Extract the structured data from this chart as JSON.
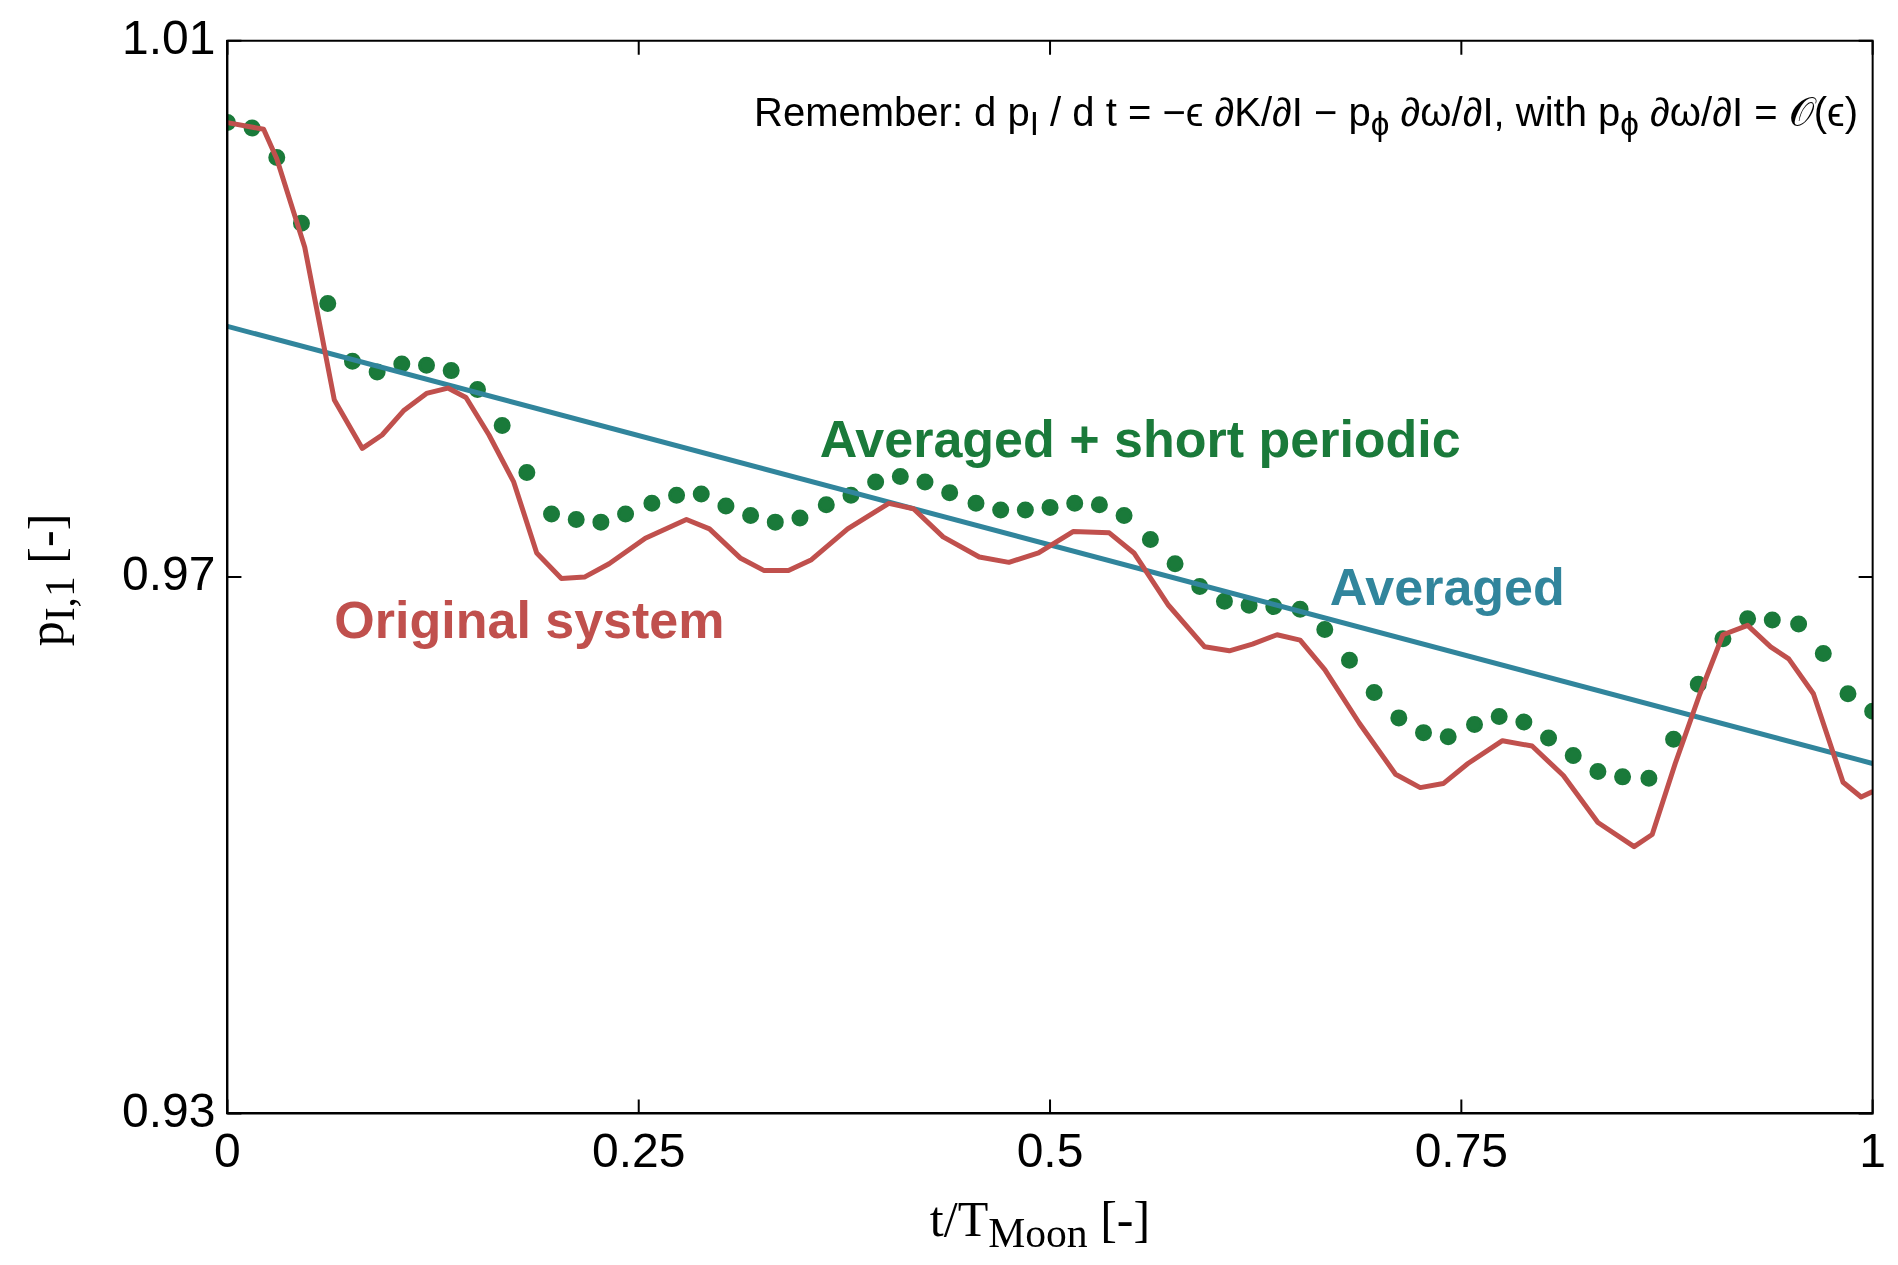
{
  "chart_data": {
    "type": "line",
    "xlabel": "t/T$_{Moon}$ [-]",
    "ylabel": "p$_{I,1}$ [-]",
    "xlim": [
      0,
      1
    ],
    "xticks": [
      0,
      0.25,
      0.5,
      0.75,
      1
    ],
    "ylim": [
      0.93,
      1.01
    ],
    "yticks": [
      0.93,
      0.97,
      1.01
    ],
    "annotations": [
      "Remember: d p$_{I}$ / d t = −ϵ ∂K/∂I − p$_{ϕ}$ ∂ω/∂I, with p$_{ϕ}$ ∂ω/∂I = 𝒪(ϵ)"
    ],
    "series": [
      {
        "name": "Original system",
        "type": "line",
        "color": "#c0504d",
        "marker": "none",
        "line_style": "solid",
        "x": [
          0,
          0.022,
          0.03,
          0.047,
          0.065,
          0.082,
          0.094,
          0.107,
          0.121,
          0.134,
          0.145,
          0.159,
          0.174,
          0.188,
          0.203,
          0.217,
          0.232,
          0.254,
          0.279,
          0.293,
          0.312,
          0.326,
          0.341,
          0.355,
          0.377,
          0.402,
          0.417,
          0.435,
          0.457,
          0.475,
          0.493,
          0.514,
          0.536,
          0.551,
          0.572,
          0.594,
          0.609,
          0.623,
          0.638,
          0.652,
          0.667,
          0.688,
          0.71,
          0.725,
          0.739,
          0.754,
          0.775,
          0.793,
          0.812,
          0.833,
          0.855,
          0.866,
          0.88,
          0.895,
          0.909,
          0.924,
          0.938,
          0.949,
          0.964,
          0.982,
          0.993,
          1
        ],
        "values": [
          1.0039,
          1.0034,
          1.0012,
          0.9946,
          0.9832,
          0.9796,
          0.9806,
          0.9824,
          0.9837,
          0.9841,
          0.9834,
          0.9806,
          0.9771,
          0.9718,
          0.9699,
          0.97,
          0.971,
          0.9729,
          0.9743,
          0.9736,
          0.9714,
          0.9705,
          0.9705,
          0.9713,
          0.9736,
          0.9755,
          0.9751,
          0.973,
          0.9715,
          0.9711,
          0.9718,
          0.9734,
          0.9733,
          0.9718,
          0.9679,
          0.9648,
          0.9645,
          0.965,
          0.9657,
          0.9653,
          0.9631,
          0.9591,
          0.9553,
          0.9543,
          0.9546,
          0.9561,
          0.9578,
          0.9574,
          0.9552,
          0.9517,
          0.9499,
          0.9508,
          0.9561,
          0.9613,
          0.9657,
          0.9664,
          0.9648,
          0.9639,
          0.9613,
          0.9547,
          0.9536,
          0.954
        ]
      },
      {
        "name": "Averaged",
        "type": "line",
        "color": "#31859c",
        "marker": "none",
        "line_style": "solid",
        "x": [
          0,
          1
        ],
        "values": [
          0.9887,
          0.9561
        ]
      },
      {
        "name": "Averaged + short periodic",
        "type": "scatter",
        "color": "#1a7a3a",
        "marker": "circle",
        "x": [
          0,
          0.015,
          0.03,
          0.045,
          0.061,
          0.076,
          0.091,
          0.106,
          0.121,
          0.136,
          0.152,
          0.167,
          0.182,
          0.197,
          0.212,
          0.227,
          0.242,
          0.258,
          0.273,
          0.288,
          0.303,
          0.318,
          0.333,
          0.348,
          0.364,
          0.379,
          0.394,
          0.409,
          0.424,
          0.439,
          0.455,
          0.47,
          0.485,
          0.5,
          0.515,
          0.53,
          0.545,
          0.561,
          0.576,
          0.591,
          0.606,
          0.621,
          0.636,
          0.652,
          0.667,
          0.682,
          0.697,
          0.712,
          0.727,
          0.742,
          0.758,
          0.773,
          0.788,
          0.803,
          0.818,
          0.833,
          0.848,
          0.864,
          0.879,
          0.894,
          0.909,
          0.924,
          0.939,
          0.955,
          0.97,
          0.985,
          1
        ],
        "values": [
          1.0039,
          1.0035,
          1.0013,
          0.9964,
          0.9904,
          0.9861,
          0.9853,
          0.9859,
          0.9858,
          0.9854,
          0.984,
          0.9813,
          0.9778,
          0.9747,
          0.9743,
          0.9741,
          0.9747,
          0.9755,
          0.9761,
          0.9762,
          0.9753,
          0.9746,
          0.9741,
          0.9744,
          0.9754,
          0.9761,
          0.9771,
          0.9775,
          0.9771,
          0.9763,
          0.9755,
          0.975,
          0.975,
          0.9752,
          0.9755,
          0.9754,
          0.9746,
          0.9728,
          0.971,
          0.9693,
          0.9682,
          0.9679,
          0.9678,
          0.9676,
          0.9661,
          0.9638,
          0.9614,
          0.9595,
          0.9584,
          0.9581,
          0.959,
          0.9596,
          0.9592,
          0.958,
          0.9567,
          0.9555,
          0.9551,
          0.955,
          0.9579,
          0.962,
          0.9654,
          0.9669,
          0.9668,
          0.9665,
          0.9643,
          0.9613,
          0.96
        ]
      }
    ]
  }
}
